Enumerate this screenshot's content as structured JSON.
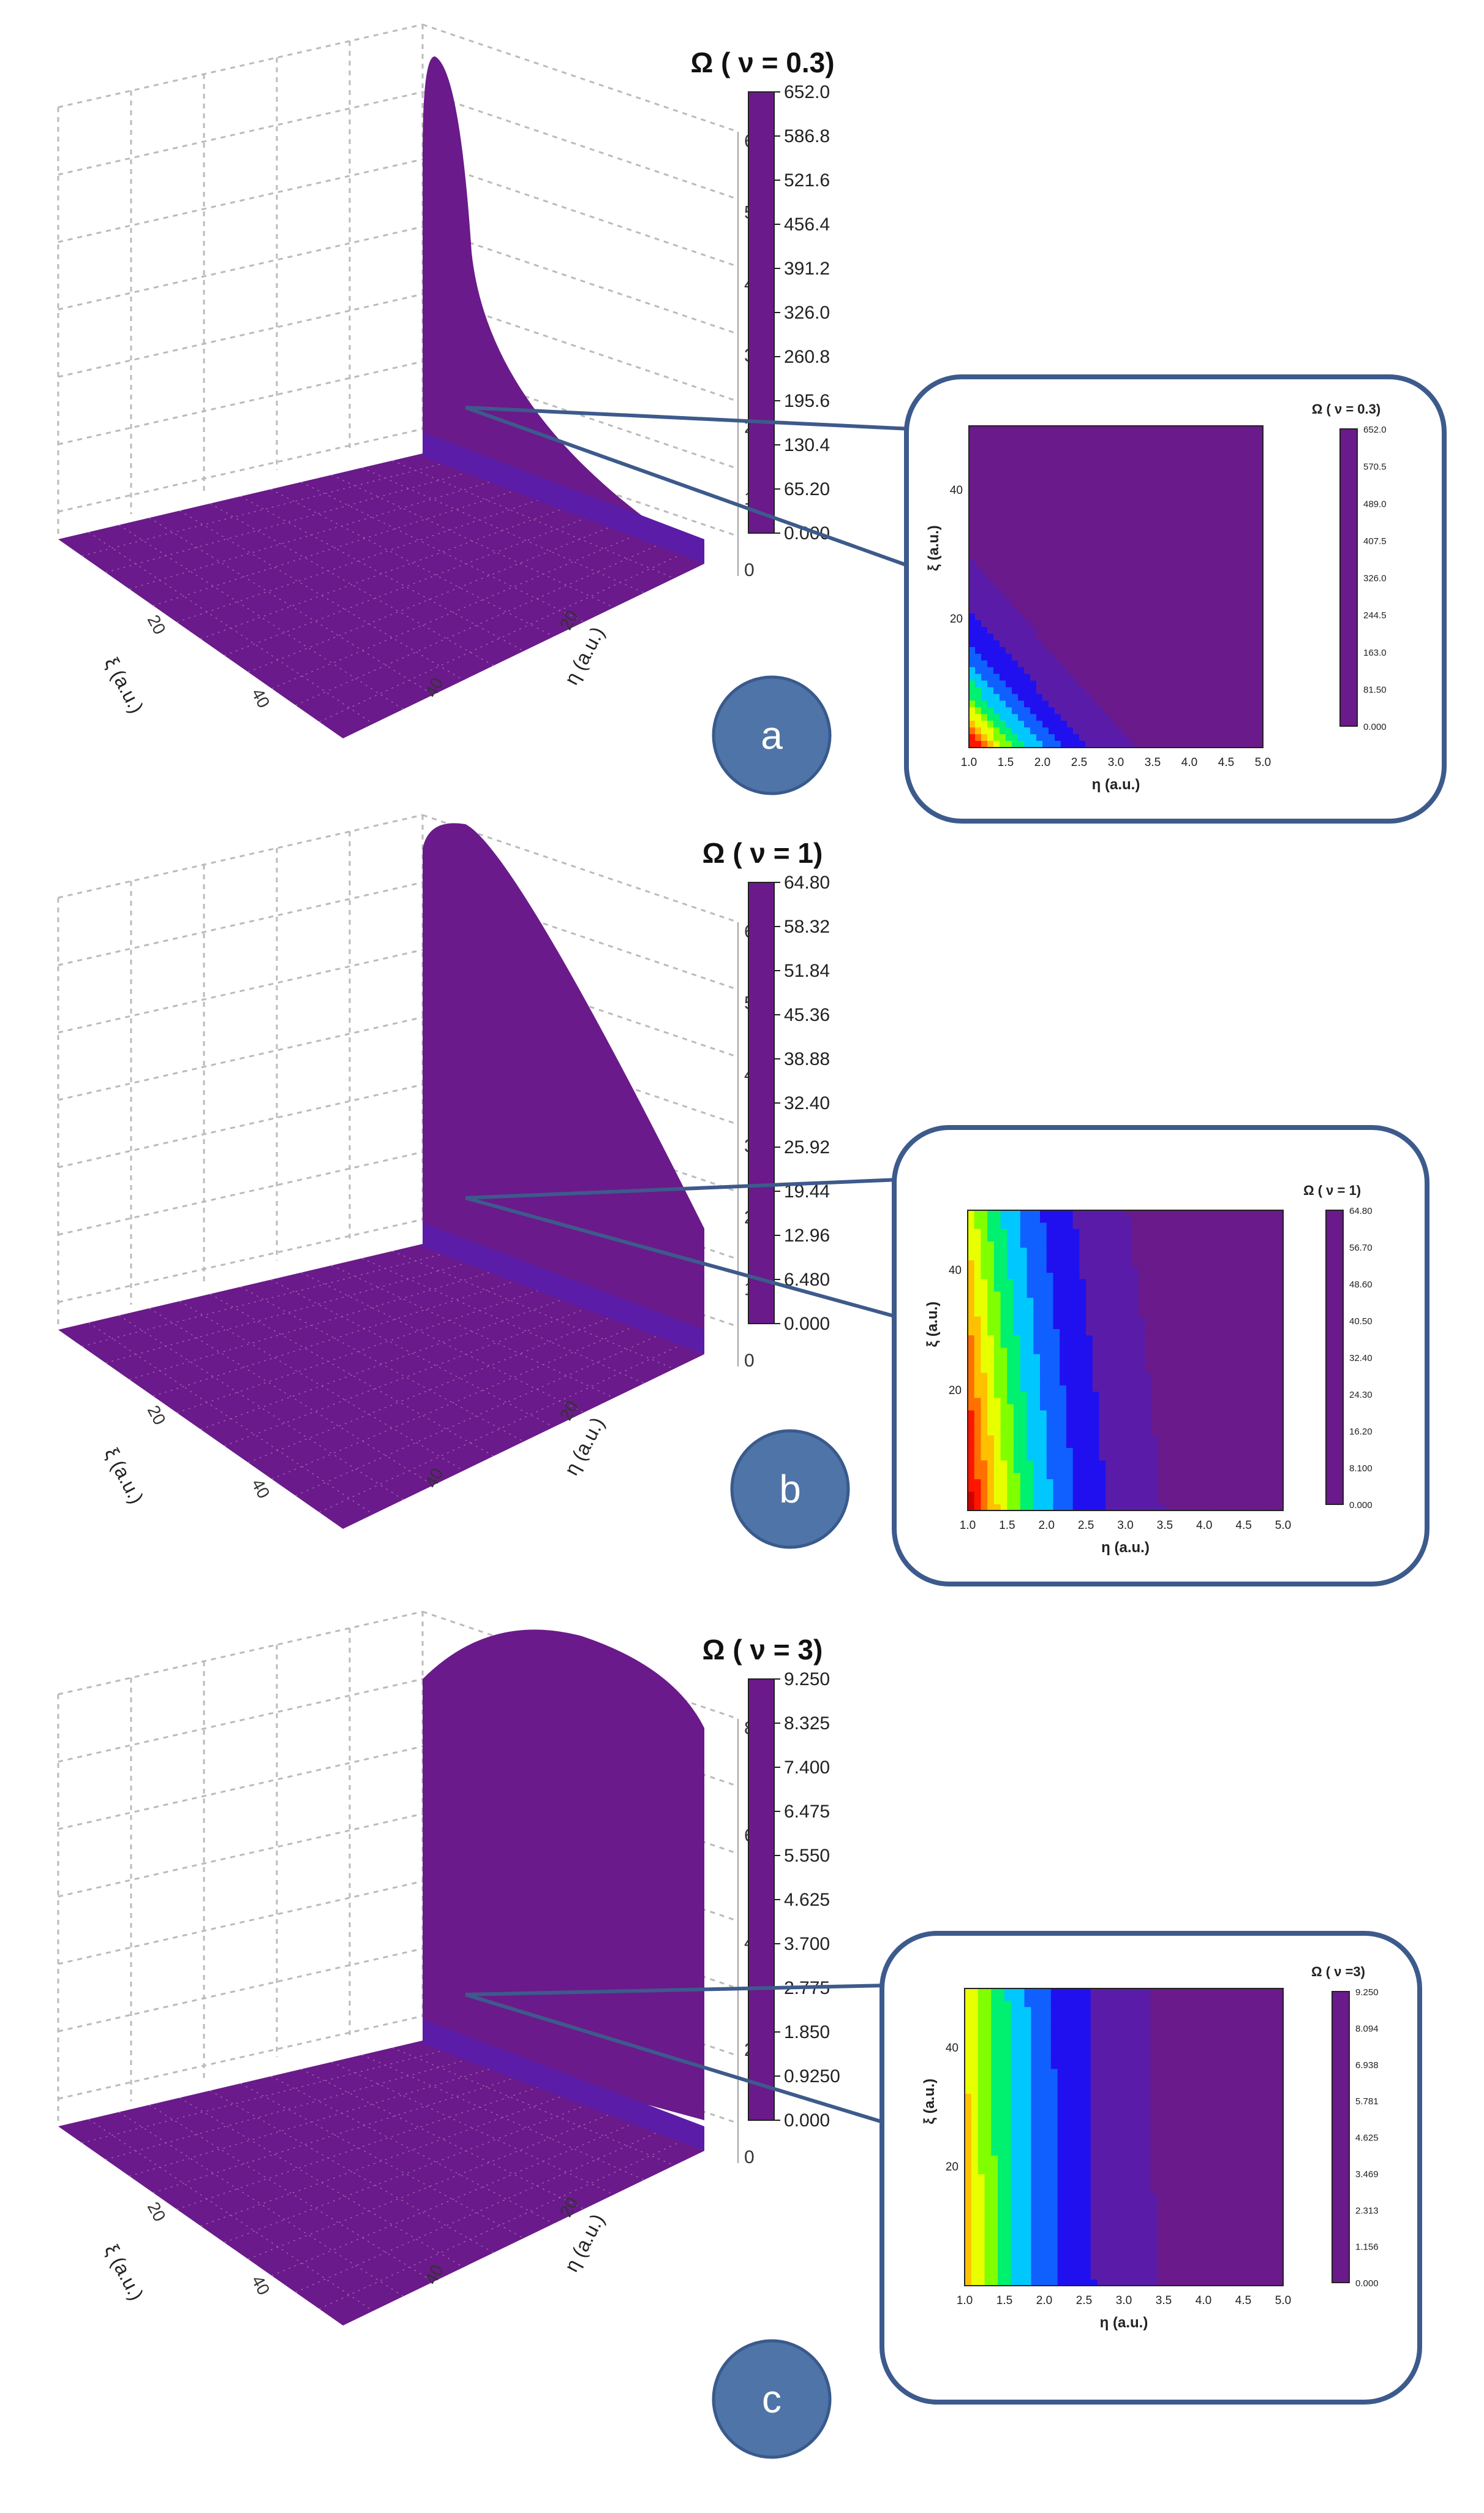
{
  "chart_data": [
    {
      "panel": "a",
      "type": "surface3d",
      "title": "Ω ( ν = 0.3)",
      "x_axis_label": "η (a.u.)",
      "y_axis_label": "ξ (a.u.)",
      "x_ticks": [
        "20",
        "40"
      ],
      "y_ticks": [
        "20",
        "40"
      ],
      "z_ticks": [
        "0",
        "100",
        "200",
        "300",
        "400",
        "500",
        "600"
      ],
      "colorbar_ticks": [
        "652.0",
        "586.8",
        "521.6",
        "456.4",
        "391.2",
        "326.0",
        "260.8",
        "195.6",
        "130.4",
        "65.20",
        "0.000"
      ],
      "zlim": [
        0,
        652
      ],
      "inset": {
        "type": "heatmap",
        "title": "Ω ( ν = 0.3)",
        "xlabel": "η (a.u.)",
        "ylabel": "ξ (a.u.)",
        "x_ticks": [
          "1.0",
          "1.5",
          "2.0",
          "2.5",
          "3.0",
          "3.5",
          "4.0",
          "4.5",
          "5.0"
        ],
        "y_ticks": [
          "20",
          "40"
        ],
        "colorbar_ticks": [
          "652.0",
          "570.5",
          "489.0",
          "407.5",
          "326.0",
          "244.5",
          "163.0",
          "81.50",
          "0.000"
        ],
        "xlim": [
          1,
          5
        ],
        "ylim": [
          0,
          50
        ]
      }
    },
    {
      "panel": "b",
      "type": "surface3d",
      "title": "Ω ( ν = 1)",
      "x_axis_label": "η (a.u.)",
      "y_axis_label": "ξ (a.u.)",
      "x_ticks": [
        "20",
        "40"
      ],
      "y_ticks": [
        "20",
        "40"
      ],
      "z_ticks": [
        "0",
        "10",
        "20",
        "30",
        "40",
        "50",
        "60"
      ],
      "colorbar_ticks": [
        "64.80",
        "58.32",
        "51.84",
        "45.36",
        "38.88",
        "32.40",
        "25.92",
        "19.44",
        "12.96",
        "6.480",
        "0.000"
      ],
      "zlim": [
        0,
        64.8
      ],
      "inset": {
        "type": "heatmap",
        "title": "Ω ( ν = 1)",
        "xlabel": "η (a.u.)",
        "ylabel": "ξ (a.u.)",
        "x_ticks": [
          "1.0",
          "1.5",
          "2.0",
          "2.5",
          "3.0",
          "3.5",
          "4.0",
          "4.5",
          "5.0"
        ],
        "y_ticks": [
          "20",
          "40"
        ],
        "colorbar_ticks": [
          "64.80",
          "56.70",
          "48.60",
          "40.50",
          "32.40",
          "24.30",
          "16.20",
          "8.100",
          "0.000"
        ],
        "xlim": [
          1,
          5
        ],
        "ylim": [
          0,
          50
        ]
      }
    },
    {
      "panel": "c",
      "type": "surface3d",
      "title": "Ω ( ν = 3)",
      "x_axis_label": "η (a.u.)",
      "y_axis_label": "ξ (a.u.)",
      "x_ticks": [
        "20",
        "40"
      ],
      "y_ticks": [
        "20",
        "40"
      ],
      "z_ticks": [
        "0",
        "2",
        "4",
        "6",
        "8"
      ],
      "colorbar_ticks": [
        "9.250",
        "8.325",
        "7.400",
        "6.475",
        "5.550",
        "4.625",
        "3.700",
        "2.775",
        "1.850",
        "0.9250",
        "0.000"
      ],
      "zlim": [
        0,
        9.25
      ],
      "inset": {
        "type": "heatmap",
        "title": "Ω ( ν =3)",
        "xlabel": "η (a.u.)",
        "ylabel": "ξ (a.u.)",
        "x_ticks": [
          "1.0",
          "1.5",
          "2.0",
          "2.5",
          "3.0",
          "3.5",
          "4.0",
          "4.5",
          "5.0"
        ],
        "y_ticks": [
          "20",
          "40"
        ],
        "colorbar_ticks": [
          "9.250",
          "8.094",
          "6.938",
          "5.781",
          "4.625",
          "3.469",
          "2.313",
          "1.156",
          "0.000"
        ],
        "xlim": [
          1,
          5
        ],
        "ylim": [
          0,
          50
        ]
      }
    }
  ],
  "colors": {
    "accent": "#4a72b0",
    "badge_fill": "#4f74a8",
    "badge_stroke": "#3a5a8c",
    "inset_frame": "#3d5a8c",
    "floor": "#6a1a8a",
    "colormap": [
      "#6a1a8a",
      "#5a1ca8",
      "#2010f0",
      "#1060ff",
      "#00c8ff",
      "#00f070",
      "#80ff00",
      "#e8ff00",
      "#ffc000",
      "#ff7000",
      "#ff1500",
      "#d00000",
      "#7a0000"
    ]
  }
}
